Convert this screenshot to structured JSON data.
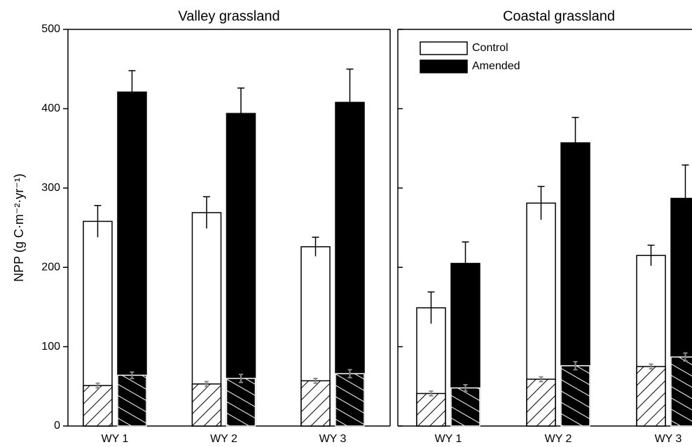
{
  "chart_data": [
    {
      "type": "bar",
      "title": "Valley grassland",
      "ylabel": "NPP (g C·m⁻²·yr⁻¹)",
      "categories": [
        "WY 1",
        "WY 2",
        "WY 3"
      ],
      "ylim": [
        0,
        500
      ],
      "yticks": [
        0,
        100,
        200,
        300,
        400,
        500
      ],
      "ytick_labels": true,
      "tick_direction": "out",
      "series": [
        {
          "color": "#ffffff",
          "values": [
            258,
            269,
            226
          ],
          "errors": [
            20,
            20,
            12
          ],
          "overlay_values": [
            51,
            53,
            57
          ],
          "overlay_errors": [
            3,
            3,
            3
          ]
        },
        {
          "color": "#000000",
          "values": [
            421,
            394,
            408
          ],
          "errors": [
            27,
            32,
            42
          ],
          "overlay_values": [
            64,
            60,
            66
          ],
          "overlay_errors": [
            4,
            5,
            5
          ]
        }
      ]
    },
    {
      "type": "bar",
      "title": "Coastal grassland",
      "categories": [
        "WY 1",
        "WY 2",
        "WY 3"
      ],
      "ylim": [
        0,
        500
      ],
      "yticks": [
        0,
        100,
        200,
        300,
        400,
        500
      ],
      "ytick_labels": false,
      "tick_direction": "in",
      "legend": "upper left",
      "series": [
        {
          "name": "Control",
          "color": "#ffffff",
          "values": [
            149,
            281,
            215
          ],
          "errors": [
            20,
            21,
            13
          ],
          "overlay_values": [
            41,
            59,
            75
          ],
          "overlay_errors": [
            3,
            3,
            3
          ]
        },
        {
          "name": "Amended",
          "color": "#000000",
          "values": [
            205,
            357,
            287
          ],
          "errors": [
            27,
            32,
            42
          ],
          "overlay_values": [
            48,
            76,
            87
          ],
          "overlay_errors": [
            4,
            5,
            5
          ]
        }
      ]
    }
  ]
}
